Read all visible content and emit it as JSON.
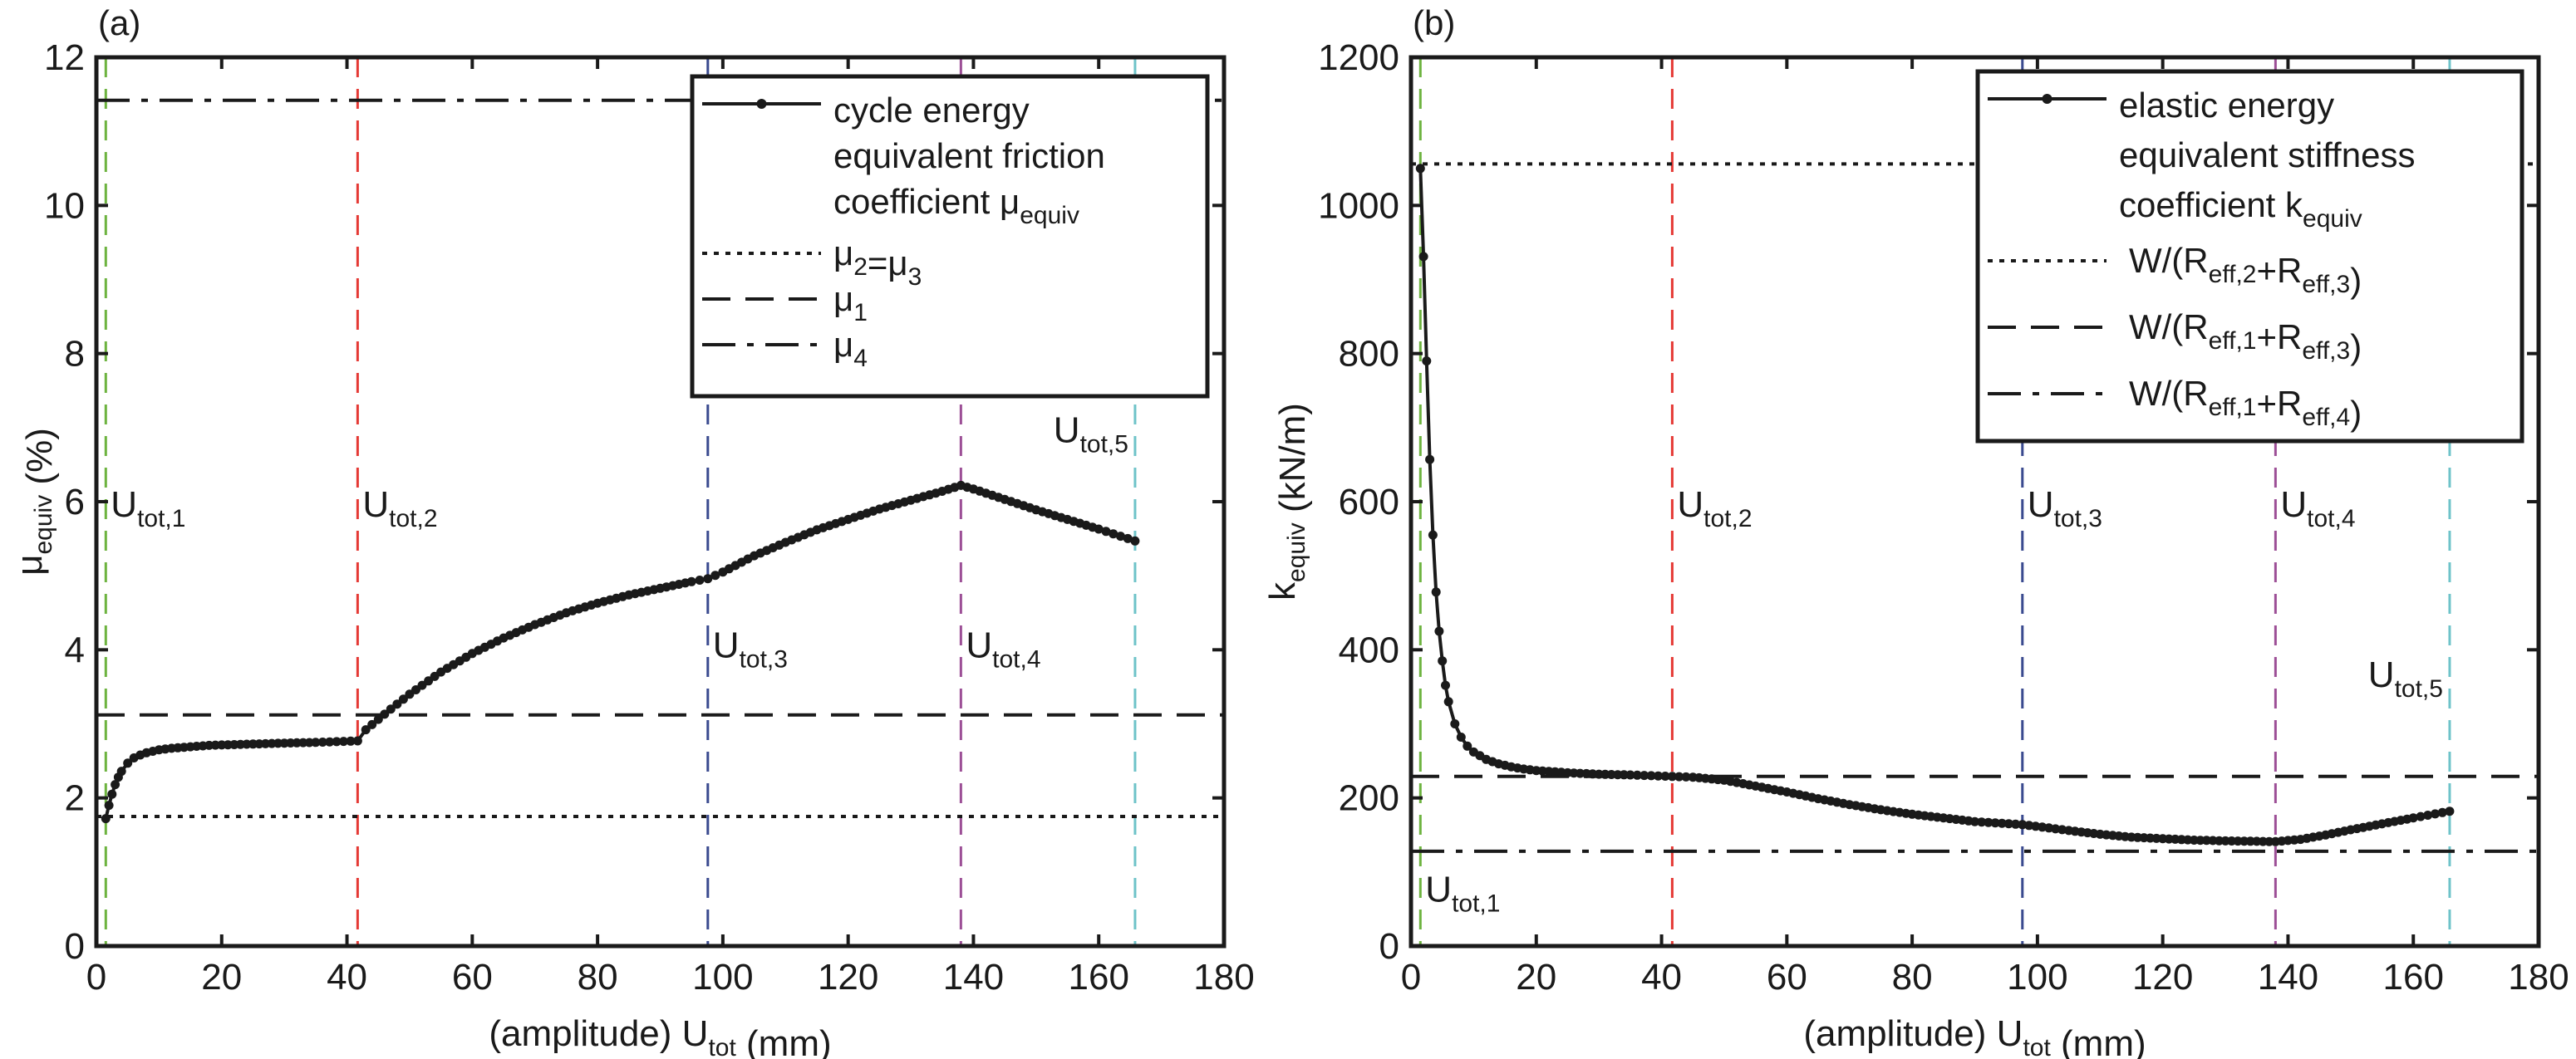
{
  "chart_data": [
    {
      "panel_label": "(a)",
      "type": "line",
      "xlabel": {
        "prefix": "(amplitude) U",
        "sub": "tot",
        "suffix": " (mm)"
      },
      "ylabel": {
        "prefix": "μ",
        "sub": "equiv",
        "suffix": " (%)"
      },
      "xlim": [
        0,
        180
      ],
      "ylim": [
        0,
        12
      ],
      "xticks": [
        0,
        20,
        40,
        60,
        80,
        100,
        120,
        140,
        160,
        180
      ],
      "yticks": [
        0,
        2,
        4,
        6,
        8,
        10,
        12
      ],
      "grid": false,
      "legend_position": "top-right",
      "vertical_markers": [
        {
          "x": 1.5,
          "color": "#6db33f",
          "label": "U",
          "sub": "tot,1",
          "label_y": 5.8
        },
        {
          "x": 41.7,
          "color": "#e53935",
          "label": "U",
          "sub": "tot,2",
          "label_y": 5.8
        },
        {
          "x": 97.6,
          "color": "#3a4a8f",
          "label": "U",
          "sub": "tot,3",
          "label_y": 3.9
        },
        {
          "x": 138,
          "color": "#9c4f96",
          "label": "U",
          "sub": "tot,4",
          "label_y": 3.9
        },
        {
          "x": 165.8,
          "color": "#6ec3c9",
          "label": "U",
          "sub": "tot,5",
          "label_y": 6.8,
          "label_side": "left"
        }
      ],
      "reference_lines": [
        {
          "name": "μ2=μ3",
          "legend": {
            "parts": [
              [
                "μ",
                "2"
              ],
              [
                "=μ",
                "3"
              ]
            ]
          },
          "y": 1.75,
          "style": "dotted"
        },
        {
          "name": "μ1",
          "legend": {
            "parts": [
              [
                "μ",
                "1"
              ]
            ]
          },
          "y": 3.12,
          "style": "dashed"
        },
        {
          "name": "μ4",
          "legend": {
            "parts": [
              [
                "μ",
                "4"
              ]
            ]
          },
          "y": 11.42,
          "style": "dashdot"
        }
      ],
      "series": [
        {
          "name": "cycle energy equivalent friction coefficient μequiv",
          "legend_lines": [
            "cycle energy",
            "equivalent friction",
            "coefficient μ"
          ],
          "legend_sub": "equiv",
          "style": "solid-dot",
          "x": [
            1.5,
            2,
            2.5,
            3,
            3.5,
            4,
            5,
            6,
            7,
            8,
            10,
            12,
            15,
            18,
            22,
            26,
            30,
            35,
            41.7,
            43,
            45,
            47,
            50,
            55,
            60,
            65,
            70,
            75,
            80,
            85,
            90,
            95,
            97.6,
            100,
            105,
            110,
            115,
            120,
            125,
            130,
            135,
            138,
            140,
            145,
            150,
            155,
            160,
            165.8
          ],
          "y": [
            1.72,
            1.9,
            2.05,
            2.18,
            2.28,
            2.36,
            2.47,
            2.54,
            2.58,
            2.61,
            2.65,
            2.67,
            2.69,
            2.71,
            2.72,
            2.73,
            2.74,
            2.75,
            2.77,
            2.92,
            3.06,
            3.2,
            3.4,
            3.7,
            3.95,
            4.16,
            4.34,
            4.5,
            4.63,
            4.74,
            4.83,
            4.92,
            4.96,
            5.05,
            5.27,
            5.45,
            5.62,
            5.76,
            5.9,
            6.02,
            6.14,
            6.22,
            6.17,
            6.03,
            5.89,
            5.76,
            5.63,
            5.47
          ]
        }
      ]
    },
    {
      "panel_label": "(b)",
      "type": "line",
      "xlabel": {
        "prefix": "(amplitude) U",
        "sub": "tot",
        "suffix": " (mm)"
      },
      "ylabel": {
        "prefix": "k",
        "sub": "equiv",
        "suffix": " (kN/m)"
      },
      "xlim": [
        0,
        180
      ],
      "ylim": [
        0,
        1200
      ],
      "xticks": [
        0,
        20,
        40,
        60,
        80,
        100,
        120,
        140,
        160,
        180
      ],
      "yticks": [
        0,
        200,
        400,
        600,
        800,
        1000,
        1200
      ],
      "grid": false,
      "legend_position": "top-right",
      "vertical_markers": [
        {
          "x": 1.5,
          "color": "#6db33f",
          "label": "U",
          "sub": "tot,1",
          "label_y": 60
        },
        {
          "x": 41.7,
          "color": "#e53935",
          "label": "U",
          "sub": "tot,2",
          "label_y": 580
        },
        {
          "x": 97.6,
          "color": "#3a4a8f",
          "label": "U",
          "sub": "tot,3",
          "label_y": 580
        },
        {
          "x": 138,
          "color": "#9c4f96",
          "label": "U",
          "sub": "tot,4",
          "label_y": 580
        },
        {
          "x": 165.8,
          "color": "#6ec3c9",
          "label": "U",
          "sub": "tot,5",
          "label_y": 350,
          "label_side": "left"
        }
      ],
      "reference_lines": [
        {
          "name": "W/(Reff,2+Reff,3)",
          "legend": {
            "parts": [
              [
                "W/(R",
                "eff,2"
              ],
              [
                "+R",
                "eff,3"
              ],
              [
                ")",
                ""
              ]
            ]
          },
          "y": 1056,
          "style": "dotted"
        },
        {
          "name": "W/(Reff,1+Reff,3)",
          "legend": {
            "parts": [
              [
                "W/(R",
                "eff,1"
              ],
              [
                "+R",
                "eff,3"
              ],
              [
                ")",
                ""
              ]
            ]
          },
          "y": 229,
          "style": "dashed"
        },
        {
          "name": "W/(Reff,1+Reff,4)",
          "legend": {
            "parts": [
              [
                "W/(R",
                "eff,1"
              ],
              [
                "+R",
                "eff,4"
              ],
              [
                ")",
                ""
              ]
            ]
          },
          "y": 128,
          "style": "dashdot"
        }
      ],
      "series": [
        {
          "name": "elastic energy equivalent stiffness coefficient kequiv",
          "legend_lines": [
            "elastic energy",
            "equivalent stiffness",
            "coefficient k"
          ],
          "legend_sub": "equiv",
          "style": "solid-dot",
          "x": [
            1.5,
            2,
            2.5,
            3,
            3.5,
            4,
            4.5,
            5,
            5.5,
            6,
            7,
            8,
            9,
            10,
            12,
            14,
            16,
            18,
            20,
            25,
            30,
            35,
            41.7,
            45,
            50,
            55,
            60,
            65,
            70,
            75,
            80,
            85,
            90,
            97.6,
            105,
            110,
            115,
            120,
            125,
            130,
            138,
            142,
            146,
            150,
            155,
            160,
            165.8
          ],
          "y": [
            1050,
            931,
            790,
            657,
            555,
            478,
            425,
            385,
            352,
            330,
            300,
            282,
            270,
            262,
            252,
            246,
            242,
            239,
            237,
            234,
            232,
            231,
            229,
            228,
            224,
            216,
            208,
            199,
            191,
            184,
            178,
            173,
            168,
            164,
            156,
            151,
            147,
            145,
            143,
            142,
            141,
            144,
            150,
            157,
            165,
            173,
            182
          ]
        }
      ]
    }
  ]
}
